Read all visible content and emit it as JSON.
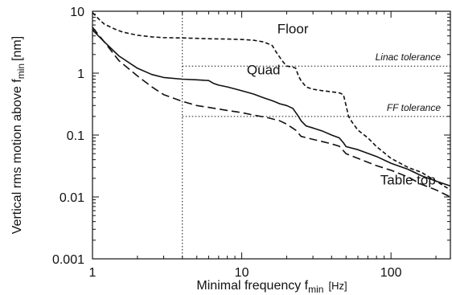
{
  "chart_data": {
    "type": "line",
    "xlabel": "Minimal frequency f",
    "xlabel_sub": "min",
    "xlabel_unit": "[Hz]",
    "ylabel": "Vertical rms motion above f",
    "ylabel_sub": "min",
    "ylabel_unit": "[nm]",
    "x_scale": "log",
    "y_scale": "log",
    "xlim": [
      1,
      250
    ],
    "ylim": [
      0.001,
      10
    ],
    "x_ticks": [
      {
        "value": 1,
        "label": "1"
      },
      {
        "value": 10,
        "label": "10"
      },
      {
        "value": 100,
        "label": "100"
      }
    ],
    "y_ticks": [
      {
        "value": 10,
        "label": "10"
      },
      {
        "value": 1,
        "label": "1"
      },
      {
        "value": 0.1,
        "label": "0.1"
      },
      {
        "value": 0.01,
        "label": "0.01"
      },
      {
        "value": 0.001,
        "label": "0.001"
      }
    ],
    "grid": false,
    "series": [
      {
        "name": "Floor",
        "style": "short-dash",
        "points": [
          [
            1,
            9.5
          ],
          [
            1.1,
            7.5
          ],
          [
            1.2,
            6.2
          ],
          [
            1.4,
            5.2
          ],
          [
            1.6,
            4.6
          ],
          [
            2,
            4.1
          ],
          [
            2.5,
            3.85
          ],
          [
            3,
            3.75
          ],
          [
            4,
            3.7
          ],
          [
            5,
            3.65
          ],
          [
            6,
            3.6
          ],
          [
            8,
            3.55
          ],
          [
            10,
            3.5
          ],
          [
            12,
            3.4
          ],
          [
            14,
            3.2
          ],
          [
            16,
            2.8
          ],
          [
            17,
            2.2
          ],
          [
            18,
            1.8
          ],
          [
            19,
            1.5
          ],
          [
            20,
            1.3
          ],
          [
            22,
            1.25
          ],
          [
            23,
            1.2
          ],
          [
            24,
            0.9
          ],
          [
            25,
            0.75
          ],
          [
            27,
            0.6
          ],
          [
            30,
            0.55
          ],
          [
            35,
            0.52
          ],
          [
            40,
            0.5
          ],
          [
            45,
            0.48
          ],
          [
            48,
            0.45
          ],
          [
            50,
            0.3
          ],
          [
            52,
            0.2
          ],
          [
            55,
            0.16
          ],
          [
            60,
            0.12
          ],
          [
            70,
            0.09
          ],
          [
            80,
            0.065
          ],
          [
            100,
            0.042
          ],
          [
            130,
            0.03
          ],
          [
            160,
            0.025
          ],
          [
            200,
            0.018
          ],
          [
            250,
            0.013
          ]
        ]
      },
      {
        "name": "Quad",
        "style": "solid",
        "points": [
          [
            1,
            5
          ],
          [
            1.2,
            3.2
          ],
          [
            1.5,
            1.9
          ],
          [
            2,
            1.2
          ],
          [
            2.5,
            0.95
          ],
          [
            3,
            0.85
          ],
          [
            4,
            0.8
          ],
          [
            5,
            0.78
          ],
          [
            6,
            0.76
          ],
          [
            6.5,
            0.68
          ],
          [
            7,
            0.64
          ],
          [
            8,
            0.6
          ],
          [
            10,
            0.52
          ],
          [
            12,
            0.46
          ],
          [
            14,
            0.4
          ],
          [
            16,
            0.36
          ],
          [
            18,
            0.32
          ],
          [
            20,
            0.3
          ],
          [
            22,
            0.27
          ],
          [
            24,
            0.2
          ],
          [
            25,
            0.17
          ],
          [
            27,
            0.14
          ],
          [
            30,
            0.13
          ],
          [
            35,
            0.115
          ],
          [
            40,
            0.1
          ],
          [
            45,
            0.09
          ],
          [
            48,
            0.075
          ],
          [
            50,
            0.065
          ],
          [
            60,
            0.058
          ],
          [
            80,
            0.045
          ],
          [
            100,
            0.035
          ],
          [
            130,
            0.028
          ],
          [
            160,
            0.022
          ],
          [
            200,
            0.018
          ],
          [
            250,
            0.015
          ]
        ]
      },
      {
        "name": "Table top",
        "style": "long-dash",
        "points": [
          [
            1,
            5.5
          ],
          [
            1.2,
            3.2
          ],
          [
            1.5,
            1.6
          ],
          [
            2,
            0.9
          ],
          [
            2.5,
            0.6
          ],
          [
            3,
            0.45
          ],
          [
            4,
            0.35
          ],
          [
            5,
            0.3
          ],
          [
            6,
            0.28
          ],
          [
            8,
            0.25
          ],
          [
            10,
            0.23
          ],
          [
            12,
            0.21
          ],
          [
            15,
            0.19
          ],
          [
            18,
            0.17
          ],
          [
            20,
            0.15
          ],
          [
            23,
            0.12
          ],
          [
            25,
            0.095
          ],
          [
            30,
            0.085
          ],
          [
            35,
            0.078
          ],
          [
            40,
            0.072
          ],
          [
            45,
            0.066
          ],
          [
            50,
            0.05
          ],
          [
            60,
            0.042
          ],
          [
            80,
            0.032
          ],
          [
            100,
            0.027
          ],
          [
            130,
            0.021
          ],
          [
            160,
            0.016
          ],
          [
            200,
            0.013
          ],
          [
            250,
            0.01
          ]
        ]
      }
    ],
    "reference_lines": [
      {
        "label": "Linac tolerance",
        "value": 1.3,
        "x_from": 4
      },
      {
        "label": "FF tolerance",
        "value": 0.2,
        "x_from": 4
      }
    ],
    "vline": {
      "value": 4
    },
    "annotations": [
      {
        "text": "Floor",
        "x": 22,
        "y": 4.4
      },
      {
        "text": "Quad",
        "x": 14,
        "y": 0.95
      },
      {
        "text": "Table top",
        "x": 130,
        "y": 0.016
      }
    ]
  }
}
